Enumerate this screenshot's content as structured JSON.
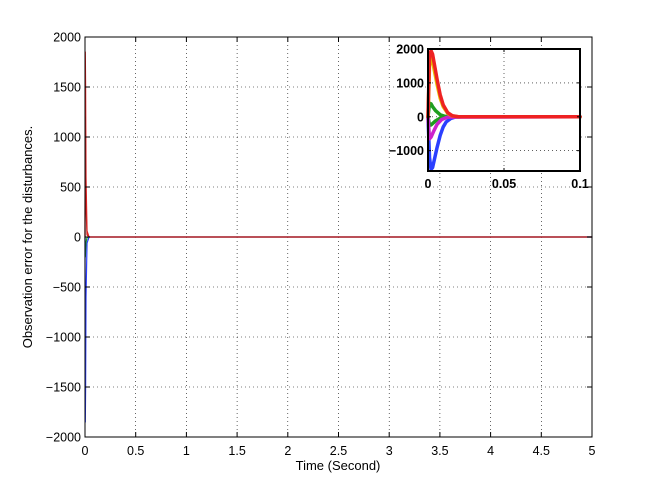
{
  "chart_data": [
    {
      "id": "main",
      "type": "line",
      "xlabel": "Time (Second)",
      "ylabel": "Observation error for the disturbances.",
      "xlim": [
        0,
        5
      ],
      "ylim": [
        -2000,
        2000
      ],
      "xticks": [
        0,
        0.5,
        1,
        1.5,
        2,
        2.5,
        3,
        3.5,
        4,
        4.5,
        5
      ],
      "xtick_labels": [
        "0",
        "0.5",
        "1",
        "1.5",
        "2",
        "2.5",
        "3",
        "3.5",
        "4",
        "4.5",
        "5"
      ],
      "yticks": [
        -2000,
        -1500,
        -1000,
        -500,
        0,
        500,
        1000,
        1500,
        2000
      ],
      "ytick_labels": [
        "−2000",
        "−1500",
        "−1000",
        "−500",
        "0",
        "500",
        "1000",
        "1500",
        "2000"
      ],
      "grid": true,
      "series": [
        {
          "color": "#ee2222",
          "x": [
            0,
            0.003,
            0.006,
            0.01,
            0.02,
            0.04,
            5
          ],
          "y": [
            0,
            1850,
            1500,
            600,
            60,
            0,
            0
          ]
        },
        {
          "color": "#1f9e1f",
          "x": [
            0,
            0.003,
            0.006,
            0.01,
            0.02,
            0.04,
            5
          ],
          "y": [
            0,
            -200,
            -150,
            -60,
            -5,
            0,
            0
          ]
        },
        {
          "color": "#2b3fff",
          "x": [
            0,
            0.003,
            0.006,
            0.01,
            0.02,
            0.04,
            5
          ],
          "y": [
            0,
            -1850,
            -1500,
            -600,
            -60,
            0,
            0
          ]
        },
        {
          "color": "#cc2222",
          "x": [
            0,
            0.003,
            0.006,
            0.01,
            0.02,
            0.04,
            5
          ],
          "y": [
            0,
            1200,
            900,
            300,
            20,
            0,
            0
          ]
        }
      ]
    },
    {
      "id": "inset",
      "type": "line",
      "xlim": [
        0,
        0.1
      ],
      "ylim": [
        -1600,
        2000
      ],
      "xticks": [
        0,
        0.05,
        0.1
      ],
      "xtick_labels": [
        "0",
        "0.05",
        "0.1"
      ],
      "yticks": [
        -1000,
        0,
        1000,
        2000
      ],
      "ytick_labels": [
        "−1000",
        "0",
        "1000",
        "2000"
      ],
      "grid": true,
      "series": [
        {
          "color": "#2b3fff",
          "x": [
            0,
            0.001,
            0.002,
            0.003,
            0.004,
            0.006,
            0.008,
            0.01,
            0.012,
            0.015,
            0.018,
            0.022,
            0.1
          ],
          "y": [
            0,
            -1200,
            -1550,
            -1500,
            -1300,
            -900,
            -550,
            -300,
            -150,
            -50,
            -10,
            0,
            0
          ]
        },
        {
          "color": "#1f9e1f",
          "x": [
            0,
            0.001,
            0.002,
            0.003,
            0.005,
            0.008,
            0.011,
            0.015,
            0.1
          ],
          "y": [
            0,
            400,
            380,
            300,
            180,
            60,
            15,
            0,
            0
          ]
        },
        {
          "color": "#1f9e1f",
          "x": [
            0,
            0.001,
            0.002,
            0.003,
            0.005,
            0.008,
            0.011,
            0.015,
            0.1
          ],
          "y": [
            0,
            -250,
            -240,
            -200,
            -120,
            -40,
            -10,
            0,
            0
          ]
        },
        {
          "color": "#cc22cc",
          "x": [
            0,
            0.001,
            0.002,
            0.004,
            0.006,
            0.009,
            0.013,
            0.1
          ],
          "y": [
            0,
            -650,
            -600,
            -400,
            -220,
            -80,
            -10,
            0
          ]
        },
        {
          "color": "#e6c000",
          "x": [
            0,
            0.001,
            0.002,
            0.003,
            0.004,
            0.006,
            0.008,
            0.01,
            0.013,
            0.016,
            0.02,
            0.1
          ],
          "y": [
            0,
            1500,
            1750,
            1650,
            1400,
            950,
            550,
            300,
            100,
            25,
            0,
            0
          ]
        },
        {
          "color": "#ee2222",
          "x": [
            0,
            0.001,
            0.002,
            0.003,
            0.004,
            0.006,
            0.008,
            0.01,
            0.013,
            0.016,
            0.02,
            0.1
          ],
          "y": [
            0,
            1800,
            1950,
            1850,
            1600,
            1100,
            650,
            350,
            120,
            30,
            0,
            0
          ]
        }
      ]
    }
  ]
}
